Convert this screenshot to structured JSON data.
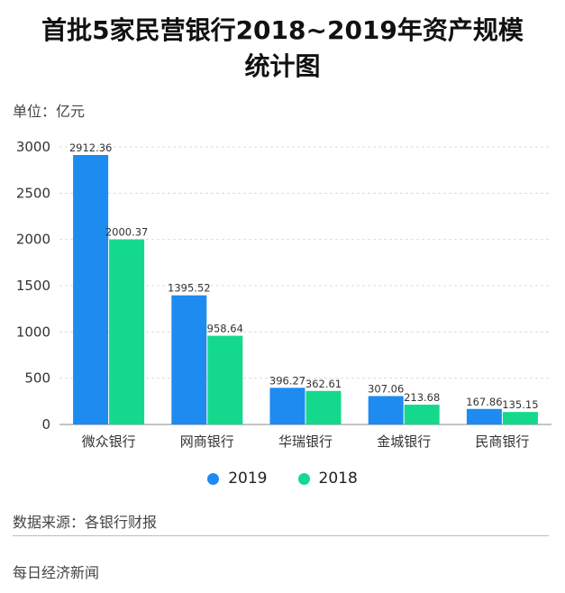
{
  "title_line1": "首批5家民营银行2018~2019年资产规模",
  "title_line2": "统计图",
  "unit_label": "单位：亿元",
  "source_label": "数据来源：各银行财报",
  "footer_label": "每日经济新闻",
  "colors": {
    "series_2019": "#1E8BF0",
    "series_2018": "#14D98C"
  },
  "chart_data": {
    "type": "bar",
    "title": "首批5家民营银行2018~2019年资产规模统计图",
    "xlabel": "",
    "ylabel": "",
    "unit": "亿元",
    "categories": [
      "微众银行",
      "网商银行",
      "华瑞银行",
      "金城银行",
      "民商银行"
    ],
    "series": [
      {
        "name": "2019",
        "values": [
          2912.36,
          1395.52,
          396.27,
          307.06,
          167.86
        ],
        "labels": [
          "2912.36",
          "1395.52",
          "396.27",
          "307.06",
          "167.86"
        ]
      },
      {
        "name": "2018",
        "values": [
          2000.37,
          958.64,
          362.61,
          213.68,
          135.15
        ],
        "labels": [
          "2000.37",
          "958.64",
          "362.61",
          "213.68",
          "135.15"
        ]
      }
    ],
    "ylim": [
      0,
      3000
    ],
    "yticks": [
      0,
      500,
      1000,
      1500,
      2000,
      2500,
      3000
    ],
    "ytick_labels": [
      "0",
      "500",
      "1000",
      "1500",
      "2000",
      "2500",
      "3000"
    ],
    "grid": true,
    "legend_position": "bottom-center"
  }
}
